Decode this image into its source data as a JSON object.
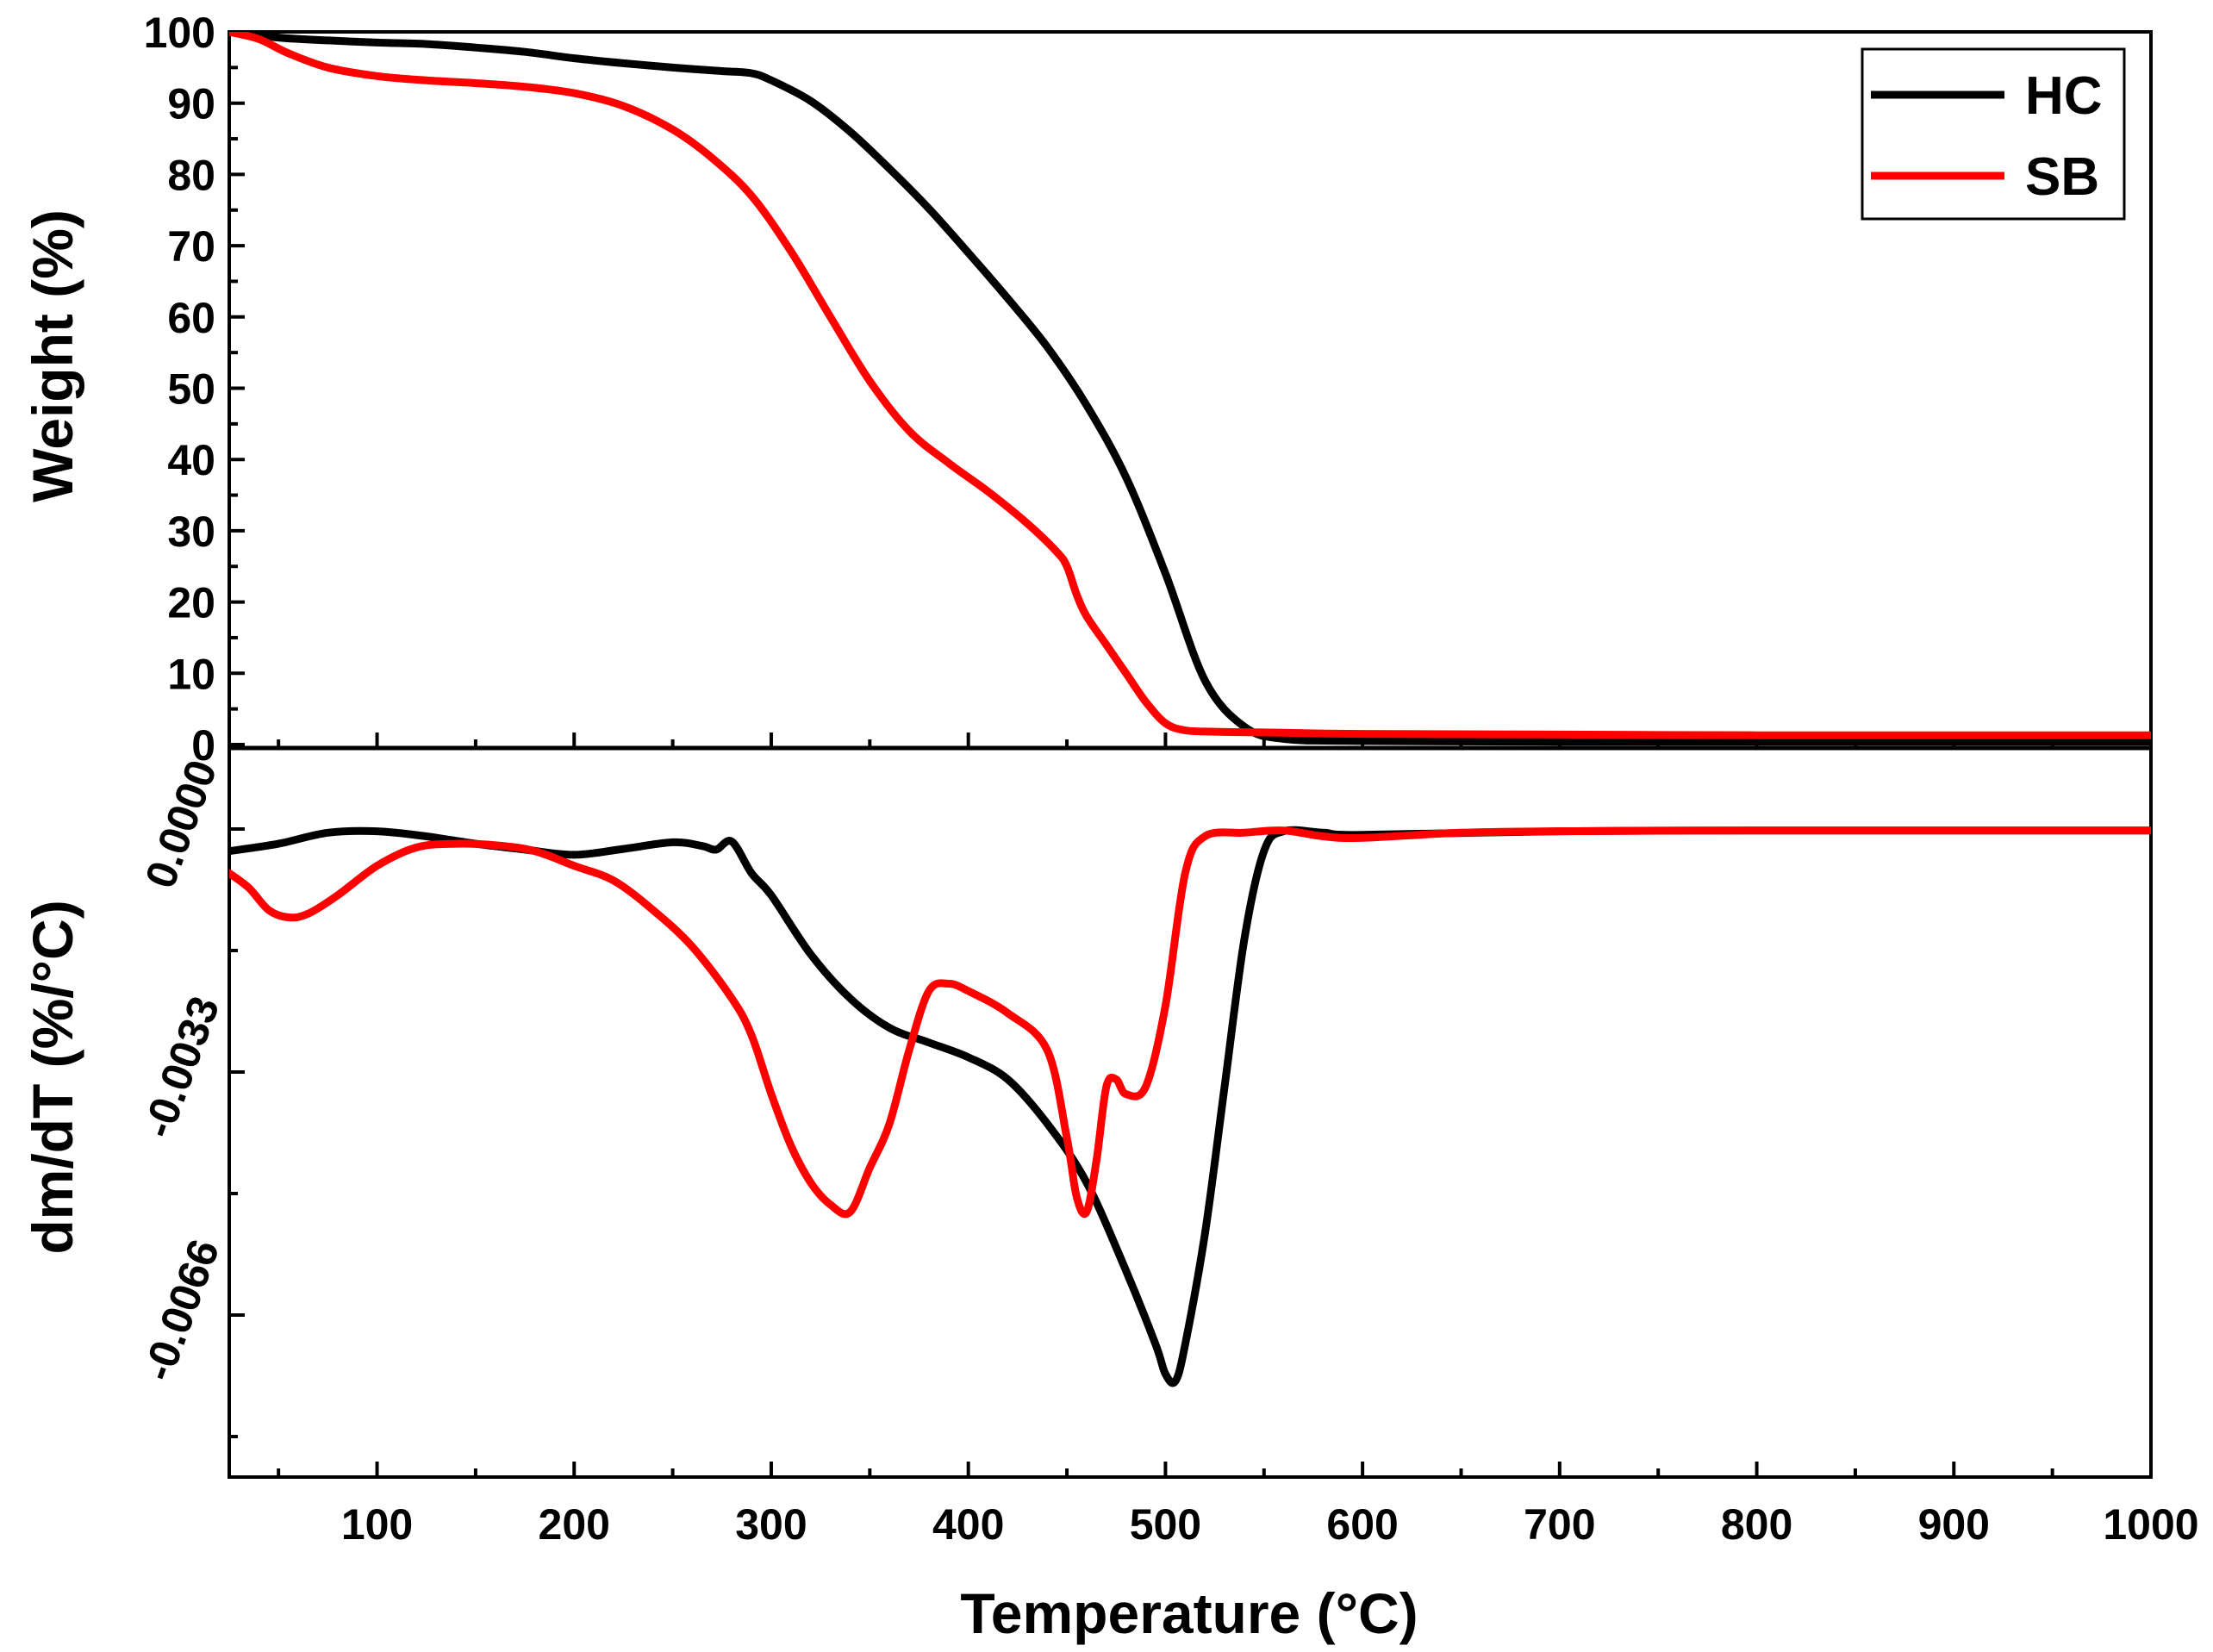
{
  "chart_data": {
    "type": "line",
    "xlabel": "Temperature (°C)",
    "xlim": [
      25,
      1000
    ],
    "x_ticks": [
      100,
      200,
      300,
      400,
      500,
      600,
      700,
      800,
      900,
      1000
    ],
    "x_tick_labels": [
      "100",
      "200",
      "300",
      "400",
      "500",
      "600",
      "700",
      "800",
      "900",
      "1000"
    ],
    "legend": {
      "position": "top-right",
      "entries": [
        "HC",
        "SB"
      ]
    },
    "colors": {
      "HC": "#000000",
      "SB": "#ff0000"
    },
    "panels": [
      {
        "id": "weight",
        "ylabel": "Weight (%)",
        "ylim": [
          0,
          100
        ],
        "y_ticks": [
          0,
          10,
          20,
          30,
          40,
          50,
          60,
          70,
          80,
          90,
          100
        ],
        "y_tick_labels": [
          "0",
          "10",
          "20",
          "30",
          "40",
          "50",
          "60",
          "70",
          "80",
          "90",
          "100"
        ],
        "series": [
          {
            "name": "HC",
            "x": [
              25,
              50,
              75,
              100,
              125,
              150,
              175,
              200,
              225,
              250,
              275,
              290,
              300,
              320,
              340,
              360,
              380,
              400,
              420,
              440,
              460,
              480,
              500,
              520,
              540,
              560,
              600,
              700,
              800,
              900,
              1000
            ],
            "values": [
              100,
              99.2,
              98.8,
              98.5,
              98.3,
              97.8,
              97.2,
              96.3,
              95.6,
              95.0,
              94.5,
              94.2,
              93.2,
              90.3,
              86.0,
              80.8,
              75.2,
              69.0,
              62.6,
              55.8,
              47.6,
              37.5,
              24.0,
              9.0,
              2.5,
              0.8,
              0.5,
              0.4,
              0.4,
              0.4,
              0.4
            ]
          },
          {
            "name": "SB",
            "x": [
              25,
              40,
              55,
              75,
              100,
              125,
              150,
              175,
              200,
              225,
              250,
              270,
              290,
              310,
              330,
              350,
              370,
              390,
              410,
              430,
              445,
              450,
              455,
              460,
              470,
              480,
              490,
              500,
              510,
              525,
              550,
              600,
              700,
              800,
              900,
              1000
            ],
            "values": [
              100,
              99.0,
              97.0,
              95.0,
              93.8,
              93.2,
              92.8,
              92.3,
              91.4,
              89.6,
              86.3,
              82.3,
              77.0,
              69.2,
              60.0,
              51.0,
              44.0,
              39.5,
              35.5,
              31.0,
              27.0,
              25.0,
              21.0,
              18.0,
              14.0,
              10.0,
              6.0,
              3.0,
              2.0,
              1.8,
              1.7,
              1.5,
              1.4,
              1.3,
              1.3,
              1.3
            ]
          }
        ]
      },
      {
        "id": "dtg",
        "ylabel": "dm/dT (%/°C)",
        "ylim": [
          -0.0088,
          0.0011
        ],
        "y_ticks": [
          0.0,
          -0.0033,
          -0.0066
        ],
        "y_tick_labels": [
          "0.0000",
          "-0.0033",
          "-0.0066"
        ],
        "y_minor_ticks": [
          -0.00165,
          -0.00495,
          -0.00825
        ],
        "series": [
          {
            "name": "HC",
            "x": [
              25,
              50,
              75,
              100,
              125,
              150,
              175,
              200,
              225,
              250,
              265,
              272,
              280,
              290,
              300,
              320,
              340,
              360,
              380,
              400,
              420,
              440,
              460,
              480,
              495,
              500,
              505,
              510,
              520,
              530,
              540,
              550,
              560,
              580,
              600,
              700,
              800,
              900,
              1000
            ],
            "values": [
              -0.0003,
              -0.0002,
              -5e-05,
              -3e-05,
              -0.0001,
              -0.0002,
              -0.00028,
              -0.00035,
              -0.00027,
              -0.00018,
              -0.00023,
              -0.00028,
              -0.00017,
              -0.0006,
              -0.0009,
              -0.0017,
              -0.0023,
              -0.0027,
              -0.0029,
              -0.0031,
              -0.0034,
              -0.004,
              -0.0048,
              -0.006,
              -0.007,
              -0.0074,
              -0.0075,
              -0.007,
              -0.0055,
              -0.0035,
              -0.0015,
              -0.0003,
              -3e-05,
              -5e-05,
              -8e-05,
              -3e-05,
              -2e-05,
              -2e-05,
              -2e-05
            ]
          },
          {
            "name": "SB",
            "x": [
              25,
              35,
              45,
              55,
              65,
              80,
              100,
              120,
              140,
              160,
              180,
              200,
              220,
              240,
              260,
              280,
              290,
              300,
              310,
              320,
              330,
              340,
              350,
              360,
              370,
              380,
              390,
              400,
              420,
              440,
              450,
              455,
              460,
              465,
              470,
              475,
              480,
              490,
              500,
              510,
              520,
              540,
              560,
              580,
              600,
              650,
              700,
              800,
              900,
              1000
            ],
            "values": [
              -0.0006,
              -0.0008,
              -0.0011,
              -0.0012,
              -0.00115,
              -0.0009,
              -0.0005,
              -0.00025,
              -0.0002,
              -0.00022,
              -0.0003,
              -0.0005,
              -0.0007,
              -0.0011,
              -0.0016,
              -0.0023,
              -0.0028,
              -0.0036,
              -0.0043,
              -0.0048,
              -0.0051,
              -0.0052,
              -0.0046,
              -0.004,
              -0.003,
              -0.0022,
              -0.0021,
              -0.0022,
              -0.0025,
              -0.003,
              -0.0042,
              -0.005,
              -0.0052,
              -0.0045,
              -0.0035,
              -0.0034,
              -0.0036,
              -0.0035,
              -0.0024,
              -0.0006,
              -0.0001,
              -5e-05,
              -2e-05,
              -0.0001,
              -0.00012,
              -5e-05,
              -3e-05,
              -2e-05,
              -2e-05,
              -2e-05
            ]
          }
        ]
      }
    ]
  }
}
